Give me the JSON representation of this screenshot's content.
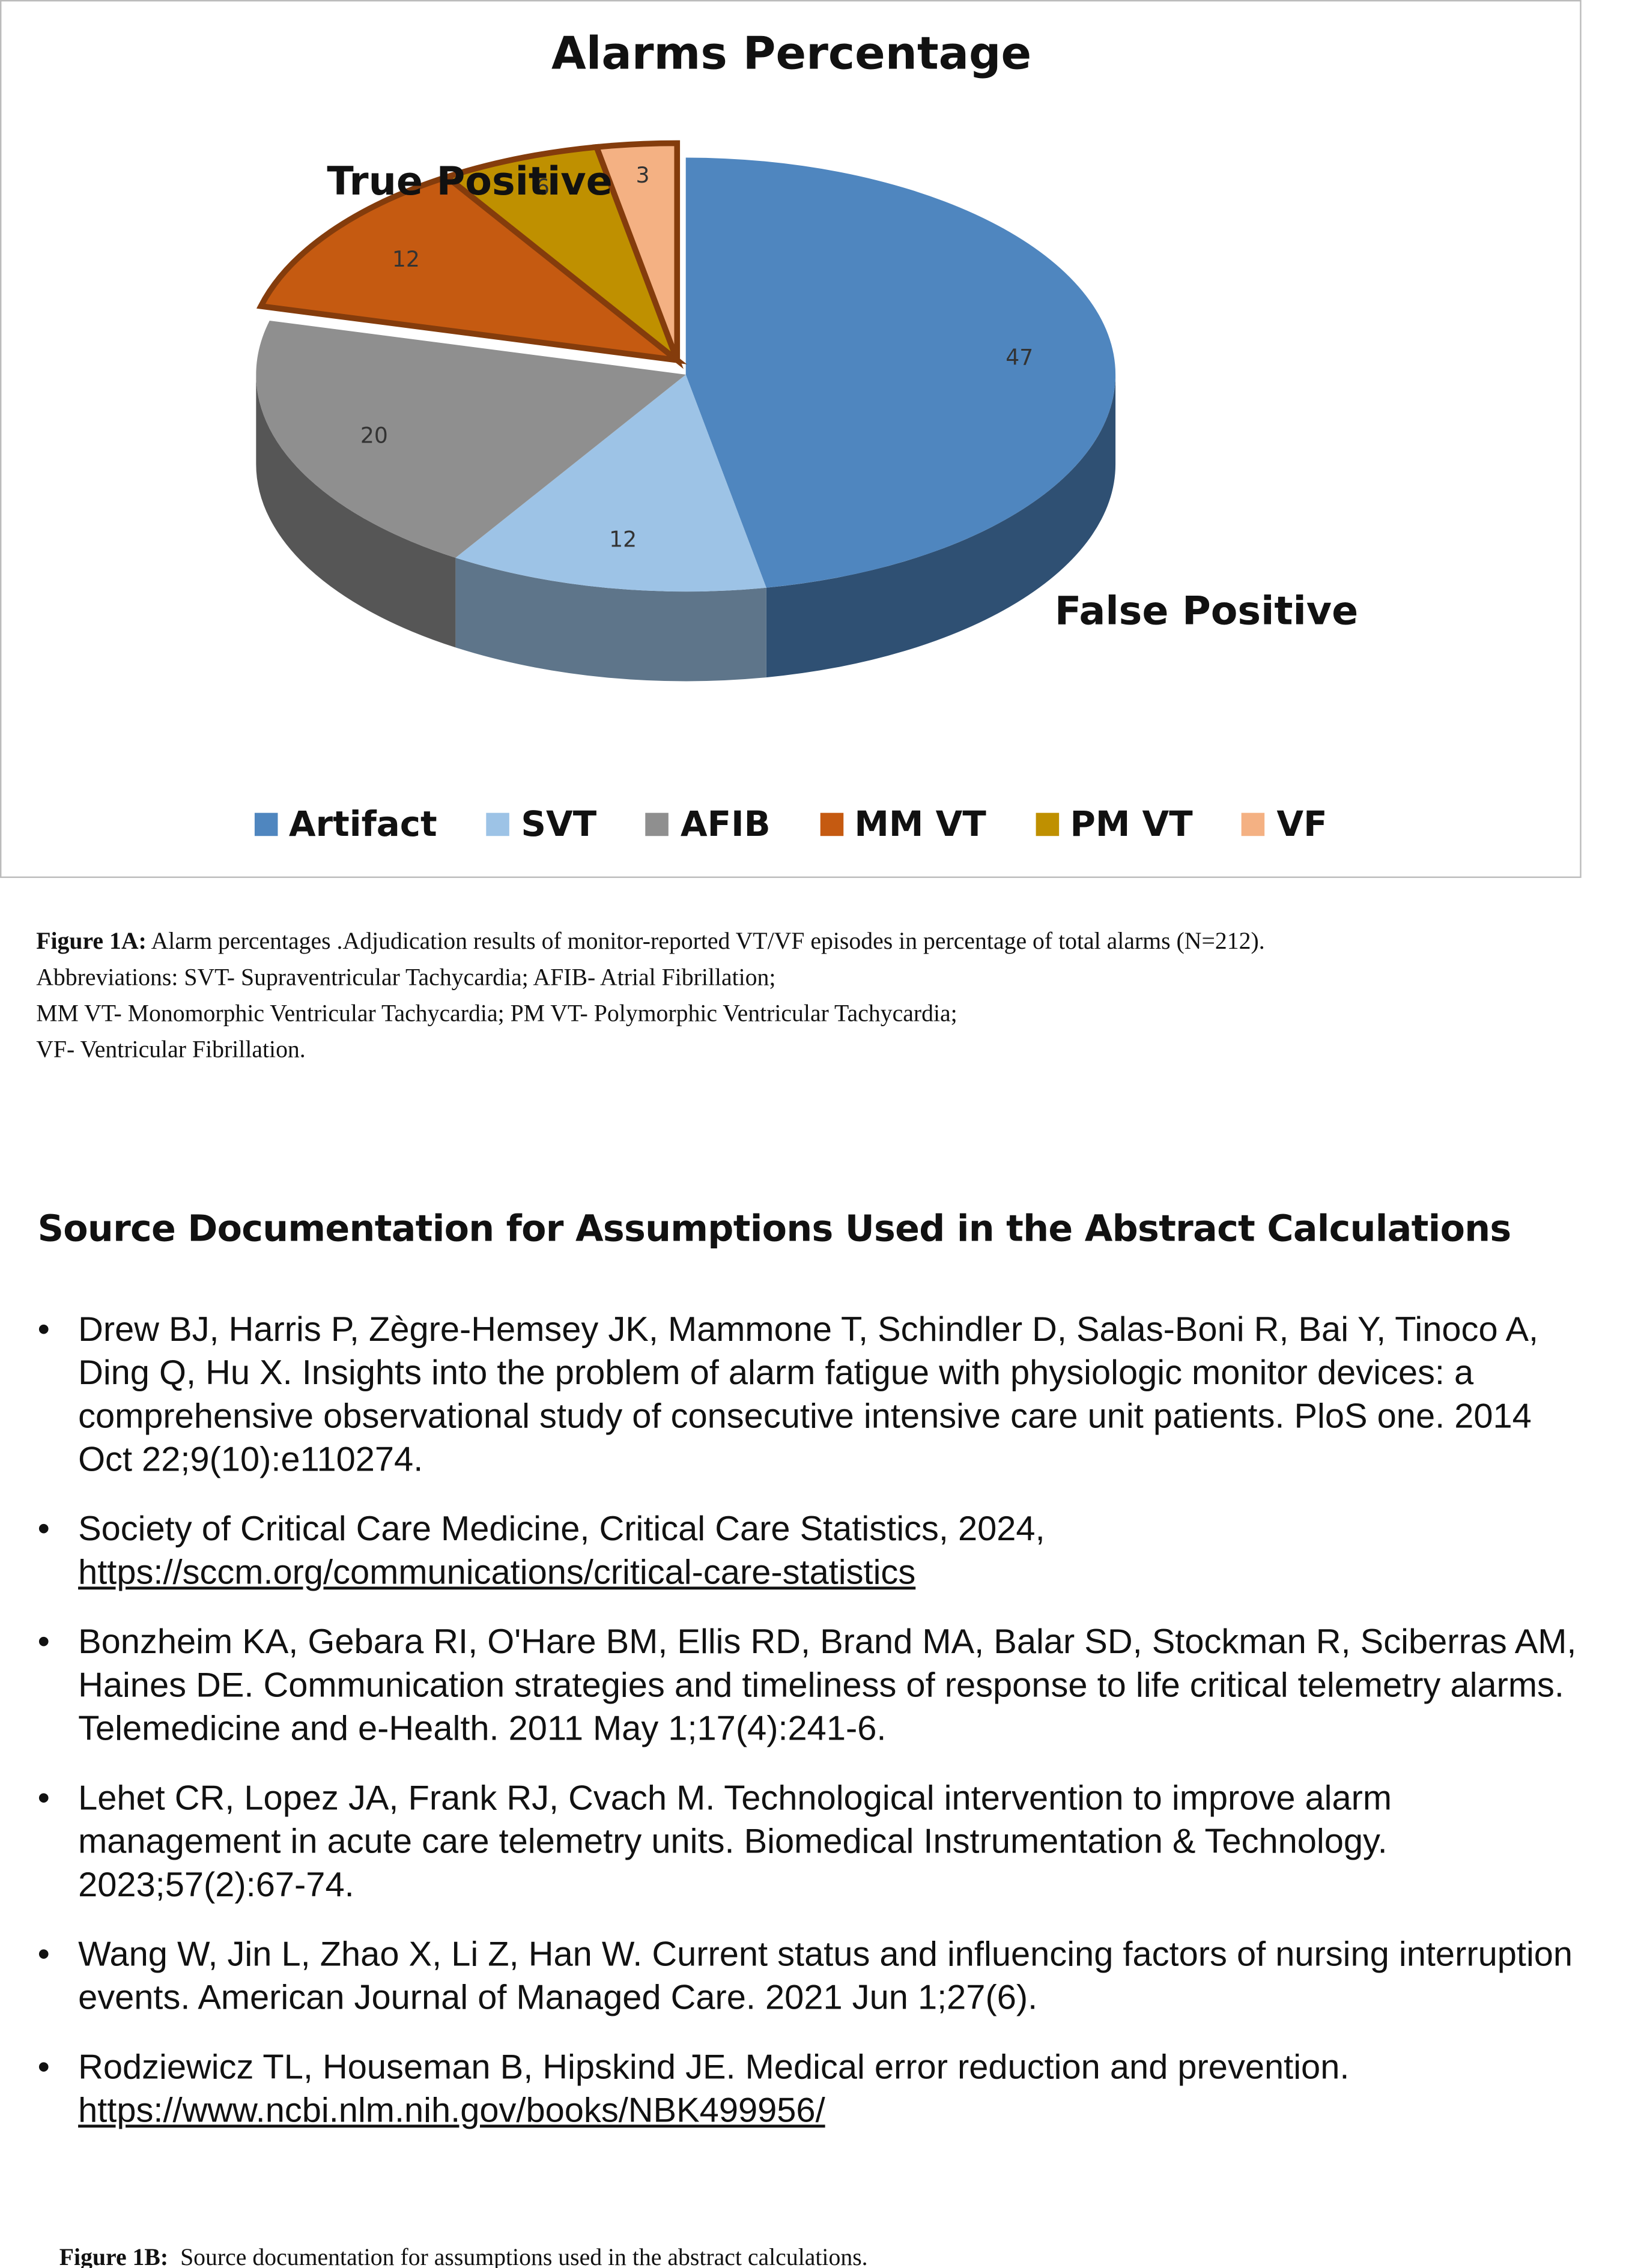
{
  "chart_data": {
    "type": "pie",
    "title": "Alarms Percentage",
    "categories": [
      "Artifact",
      "SVT",
      "AFIB",
      "MM VT",
      "PM VT",
      "VF"
    ],
    "values": [
      47,
      12,
      20,
      12,
      6,
      3
    ],
    "colors": [
      "#4f86bf",
      "#9dc3e6",
      "#8f8f8f",
      "#c55a11",
      "#bf9000",
      "#f4b183"
    ],
    "annotations": [
      "True Positive",
      "False Positive"
    ]
  },
  "caption_1a": {
    "label": "Figure 1A:",
    "lines": [
      "Alarm percentages .Adjudication results of monitor-reported VT/VF episodes in percentage of total alarms (N=212).",
      "Abbreviations: SVT- Supraventricular Tachycardia; AFIB- Atrial Fibrillation;",
      "MM VT- Monomorphic Ventricular Tachycardia; PM VT- Polymorphic Ventricular Tachycardia;",
      "VF- Ventricular Fibrillation."
    ]
  },
  "sources": {
    "heading": "Source Documentation for Assumptions Used in the Abstract Calculations",
    "items": [
      {
        "text": "Drew BJ, Harris P, Zègre-Hemsey JK, Mammone T, Schindler D, Salas-Boni R, Bai Y, Tinoco A, Ding Q, Hu X. Insights into the problem of alarm fatigue with physiologic monitor devices: a comprehensive observational study of consecutive intensive care unit patients. PloS one. 2014 Oct 22;9(10):e110274."
      },
      {
        "text": "Society of Critical Care Medicine, Critical Care Statistics, 2024,",
        "url": "https://sccm.org/communications/critical-care-statistics"
      },
      {
        "text": "Bonzheim KA, Gebara RI, O'Hare BM, Ellis RD, Brand MA, Balar SD, Stockman R, Sciberras AM, Haines DE. Communication strategies and timeliness of response to life critical telemetry alarms. Telemedicine and e-Health. 2011 May 1;17(4):241-6."
      },
      {
        "text": "Lehet CR, Lopez JA, Frank RJ, Cvach M. Technological intervention to improve alarm management in acute care telemetry units. Biomedical Instrumentation & Technology. 2023;57(2):67-74."
      },
      {
        "text": "Wang W, Jin L, Zhao X, Li Z, Han W. Current status and influencing factors of nursing interruption events. American Journal of Managed Care. 2021 Jun 1;27(6)."
      },
      {
        "text": "Rodziewicz TL, Houseman B, Hipskind JE. Medical error reduction and prevention.",
        "url": "https://www.ncbi.nlm.nih.gov/books/NBK499956/"
      }
    ]
  },
  "caption_1b": {
    "label": "Figure 1B:",
    "text": "Source documentation for assumptions used in the abstract calculations."
  }
}
